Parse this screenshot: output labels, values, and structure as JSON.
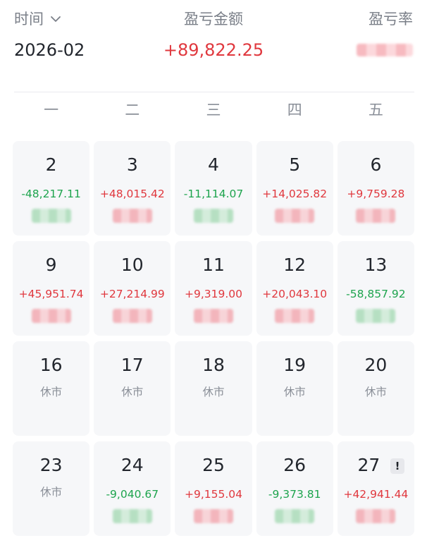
{
  "header": {
    "time_label": "时间",
    "pnl_label": "盈亏金额",
    "rate_label": "盈亏率",
    "month": "2026-02",
    "total_pnl": "+89,822.25"
  },
  "weekdays": [
    "一",
    "二",
    "三",
    "四",
    "五"
  ],
  "closed_label": "休市",
  "colors": {
    "profit": "#e0383e",
    "loss": "#1ea44e",
    "muted": "#8a8f98",
    "cell_bg": "#f6f7f9"
  },
  "days": [
    {
      "day": "2",
      "pnl": "-48,217.11",
      "dir": "down"
    },
    {
      "day": "3",
      "pnl": "+48,015.42",
      "dir": "up"
    },
    {
      "day": "4",
      "pnl": "-11,114.07",
      "dir": "down"
    },
    {
      "day": "5",
      "pnl": "+14,025.82",
      "dir": "up"
    },
    {
      "day": "6",
      "pnl": "+9,759.28",
      "dir": "up"
    },
    {
      "day": "9",
      "pnl": "+45,951.74",
      "dir": "up"
    },
    {
      "day": "10",
      "pnl": "+27,214.99",
      "dir": "up"
    },
    {
      "day": "11",
      "pnl": "+9,319.00",
      "dir": "up"
    },
    {
      "day": "12",
      "pnl": "+20,043.10",
      "dir": "up"
    },
    {
      "day": "13",
      "pnl": "-58,857.92",
      "dir": "down"
    },
    {
      "day": "16",
      "closed": true
    },
    {
      "day": "17",
      "closed": true
    },
    {
      "day": "18",
      "closed": true
    },
    {
      "day": "19",
      "closed": true
    },
    {
      "day": "20",
      "closed": true
    },
    {
      "day": "23",
      "closed": true
    },
    {
      "day": "24",
      "pnl": "-9,040.67",
      "dir": "down"
    },
    {
      "day": "25",
      "pnl": "+9,155.04",
      "dir": "up"
    },
    {
      "day": "26",
      "pnl": "-9,373.81",
      "dir": "down"
    },
    {
      "day": "27",
      "pnl": "+42,941.44",
      "dir": "up",
      "warning": "!"
    }
  ]
}
